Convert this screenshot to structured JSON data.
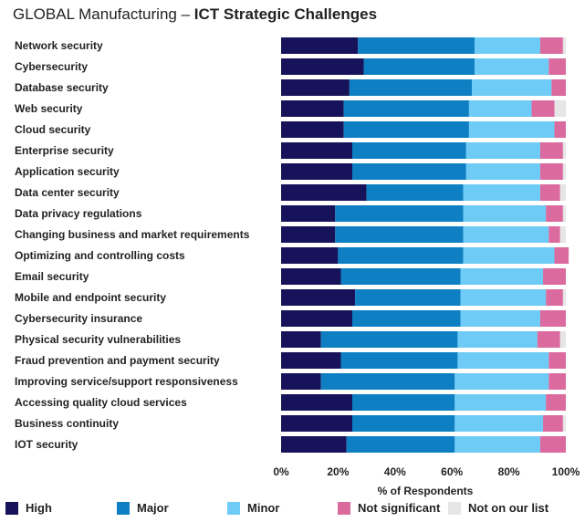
{
  "title": {
    "lead": "GLOBAL Manufacturing – ",
    "bold": "ICT Strategic Challenges"
  },
  "colors": {
    "High": "#17135a",
    "Major": "#0d7fc2",
    "Minor": "#6dcbf6",
    "Not significant": "#db6a9f",
    "Not on our list": "#e6e6e6"
  },
  "chart_data": {
    "type": "bar",
    "orientation": "horizontal",
    "stacked": true,
    "xlabel": "% of Respondents",
    "xlim": [
      0,
      100
    ],
    "xticks": [
      "0%",
      "20%",
      "40%",
      "60%",
      "80%",
      "100%"
    ],
    "legend_position": "bottom",
    "categories": [
      "Network security",
      "Cybersecurity",
      "Database security",
      "Web security",
      "Cloud security",
      "Enterprise security",
      "Application security",
      "Data center security",
      "Data privacy regulations",
      "Changing business and market requirements",
      "Optimizing and controlling costs",
      "Email security",
      "Mobile and endpoint security",
      "Cybersecurity insurance",
      "Physical security vulnerabilities",
      "Fraud prevention and payment security",
      "Improving service/support responsiveness",
      "Accessing quality cloud services",
      "Business continuity",
      "IOT security"
    ],
    "series": [
      {
        "name": "High",
        "values": [
          27,
          29,
          24,
          22,
          22,
          25,
          25,
          30,
          19,
          19,
          20,
          21,
          26,
          25,
          14,
          21,
          14,
          25,
          25,
          23
        ]
      },
      {
        "name": "Major",
        "values": [
          41,
          39,
          43,
          44,
          44,
          40,
          40,
          34,
          45,
          45,
          44,
          42,
          37,
          38,
          48,
          41,
          47,
          36,
          36,
          38
        ]
      },
      {
        "name": "Minor",
        "values": [
          23,
          26,
          28,
          22,
          30,
          26,
          26,
          27,
          29,
          30,
          32,
          29,
          30,
          28,
          28,
          32,
          33,
          32,
          31,
          30
        ]
      },
      {
        "name": "Not significant",
        "values": [
          8,
          6,
          5,
          8,
          4,
          8,
          8,
          7,
          6,
          4,
          5,
          8,
          6,
          9,
          8,
          6,
          6,
          7,
          7,
          9
        ]
      },
      {
        "name": "Not on our list",
        "values": [
          1,
          0,
          0,
          4,
          0,
          1,
          1,
          2,
          1,
          2,
          0,
          0,
          1,
          0,
          2,
          0,
          0,
          0,
          1,
          0
        ]
      }
    ]
  }
}
